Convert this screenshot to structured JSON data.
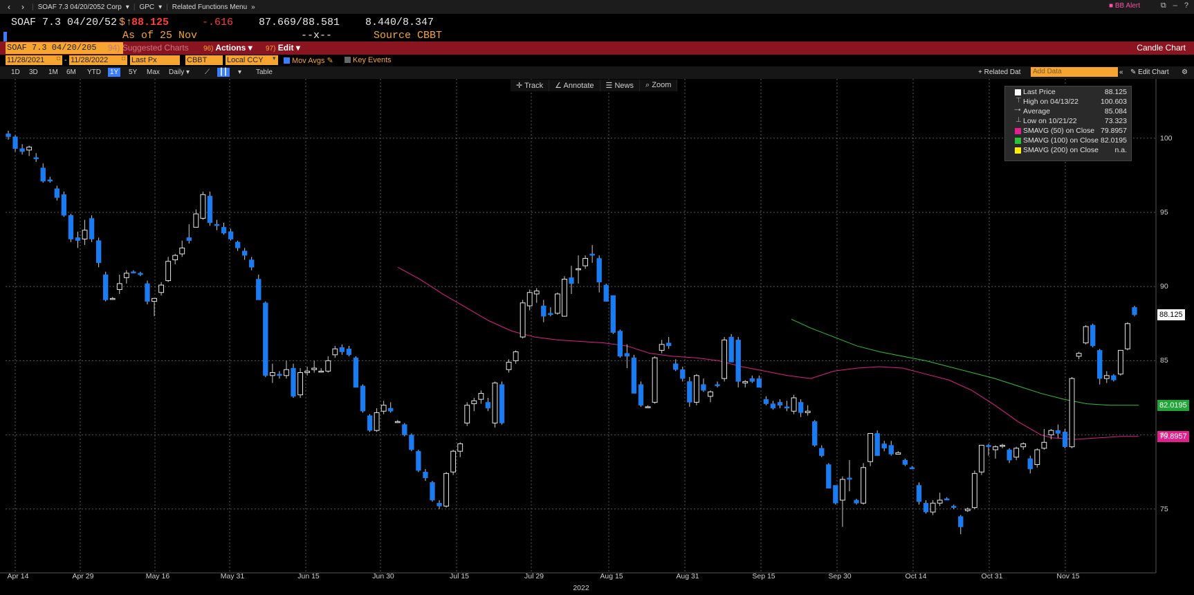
{
  "topbar": {
    "security": "SOAF 7.3 04/20/2052 Corp",
    "gpc": "GPC",
    "related": "Related Functions Menu",
    "alert": "BB Alert",
    "help": "?"
  },
  "quote": {
    "ticker": "SOAF 7.3 04/20/52",
    "currency": "$",
    "last": "88.125",
    "change": "-.616",
    "bid_ask": "87.669/88.581",
    "yields": "8.440/8.347",
    "asof": "As of 25 Nov",
    "time": "--x--",
    "source": "Source CBBT"
  },
  "menubar": {
    "ticker_field": "SOAF 7.3 04/20/205",
    "suggested_num": "94)",
    "suggested": "Suggested Charts",
    "actions_num": "96)",
    "actions": "Actions",
    "edit_num": "97)",
    "edit": "Edit",
    "title": "Candle Chart"
  },
  "controls": {
    "start_date": "11/28/2021",
    "end_date": "11/28/2022",
    "field": "Last Px",
    "source": "CBBT",
    "ccy": "Local CCY",
    "mov_avgs": "Mov Avgs",
    "key_events": "Key Events"
  },
  "periods": {
    "items": [
      "1D",
      "3D",
      "1M",
      "6M",
      "YTD",
      "1Y",
      "5Y",
      "Max"
    ],
    "selected": "1Y",
    "frequency": "Daily",
    "table": "Table",
    "related_data": "+ Related Dat",
    "add_data": "Add Data",
    "edit_chart": "Edit Chart"
  },
  "tools": {
    "track": "Track",
    "annotate": "Annotate",
    "news": "News",
    "zoom": "Zoom"
  },
  "legend": {
    "last_price_label": "Last Price",
    "last_price": "88.125",
    "high_label": "High on 04/13/22",
    "high": "100.603",
    "average_label": "Average",
    "average": "85.084",
    "low_label": "Low on 10/21/22",
    "low": "73.323",
    "sma50_label": "SMAVG (50)  on Close",
    "sma50": "79.8957",
    "sma100_label": "SMAVG (100)  on Close",
    "sma100": "82.0195",
    "sma200_label": "SMAVG (200)  on Close",
    "sma200": "n.a.",
    "colors": {
      "sma50": "#e0208c",
      "sma100": "#2ec23a",
      "sma200": "#ffee00",
      "last": "#ffffff"
    }
  },
  "chart_data": {
    "type": "candlestick",
    "x_axis_year": "2022",
    "x_ticks": [
      "Apr 14",
      "Apr 29",
      "May 16",
      "May 31",
      "Jun 15",
      "Jun 30",
      "Jul 15",
      "Jul 29",
      "Aug 15",
      "Aug 31",
      "Sep 15",
      "Sep 30",
      "Oct 14",
      "Oct 31",
      "Nov 15"
    ],
    "y_ticks": [
      75,
      80,
      85,
      90,
      95,
      100
    ],
    "ylim": [
      70.7,
      104.0
    ],
    "last_price_tag": "88.125",
    "sma100_tag": "82.0195",
    "sma50_tag": "79.8957",
    "candles": [
      [
        100.3,
        100.5,
        99.9,
        100.1
      ],
      [
        100.1,
        100.2,
        99.1,
        99.3
      ],
      [
        99.3,
        99.6,
        98.9,
        99.1
      ],
      [
        99.2,
        99.5,
        98.8,
        99.4
      ],
      [
        98.7,
        99.0,
        98.4,
        98.6
      ],
      [
        98.0,
        98.3,
        97.0,
        97.1
      ],
      [
        97.2,
        97.4,
        97.0,
        97.1
      ],
      [
        96.6,
        96.8,
        95.8,
        96.0
      ],
      [
        96.2,
        96.4,
        94.7,
        94.8
      ],
      [
        94.8,
        94.9,
        93.0,
        93.2
      ],
      [
        93.3,
        93.7,
        92.6,
        93.1
      ],
      [
        93.2,
        94.5,
        92.8,
        93.8
      ],
      [
        94.6,
        94.8,
        93.0,
        93.2
      ],
      [
        93.1,
        93.3,
        91.3,
        91.6
      ],
      [
        90.8,
        91.0,
        89.0,
        89.1
      ],
      [
        89.2,
        89.3,
        89.1,
        89.2
      ],
      [
        89.8,
        90.8,
        89.5,
        90.2
      ],
      [
        90.6,
        91.1,
        90.2,
        90.9
      ],
      [
        91.0,
        91.1,
        90.9,
        90.9
      ],
      [
        90.9,
        91.0,
        90.7,
        90.8
      ],
      [
        90.2,
        90.4,
        88.8,
        89.0
      ],
      [
        89.0,
        89.2,
        88.0,
        89.2
      ],
      [
        89.6,
        90.3,
        89.4,
        90.1
      ],
      [
        90.4,
        92.0,
        90.3,
        91.7
      ],
      [
        91.8,
        92.2,
        91.5,
        92.1
      ],
      [
        92.2,
        93.1,
        92.0,
        92.6
      ],
      [
        93.3,
        94.2,
        92.9,
        93.1
      ],
      [
        94.0,
        95.2,
        94.0,
        94.9
      ],
      [
        94.6,
        96.4,
        94.5,
        96.2
      ],
      [
        96.1,
        96.4,
        94.1,
        94.3
      ],
      [
        94.2,
        94.5,
        93.8,
        94.1
      ],
      [
        94.0,
        94.3,
        93.5,
        93.6
      ],
      [
        93.7,
        93.9,
        93.1,
        93.2
      ],
      [
        93.0,
        93.1,
        92.4,
        92.6
      ],
      [
        92.4,
        92.6,
        91.8,
        92.1
      ],
      [
        91.8,
        92.0,
        91.1,
        91.3
      ],
      [
        90.5,
        90.8,
        89.1,
        89.1
      ],
      [
        88.9,
        89.0,
        83.9,
        84.0
      ],
      [
        84.0,
        84.8,
        83.5,
        84.2
      ],
      [
        84.1,
        84.3,
        83.8,
        84.0
      ],
      [
        84.0,
        85.0,
        83.8,
        84.4
      ],
      [
        84.5,
        84.8,
        82.5,
        82.6
      ],
      [
        82.7,
        84.5,
        82.5,
        84.2
      ],
      [
        84.2,
        84.6,
        84.0,
        84.3
      ],
      [
        84.4,
        85.0,
        84.2,
        84.5
      ],
      [
        84.3,
        84.5,
        84.2,
        84.3
      ],
      [
        84.3,
        85.3,
        84.2,
        85.0
      ],
      [
        85.4,
        86.0,
        85.2,
        85.8
      ],
      [
        85.9,
        86.1,
        85.4,
        85.6
      ],
      [
        85.8,
        86.0,
        85.3,
        85.4
      ],
      [
        85.2,
        85.3,
        83.2,
        83.2
      ],
      [
        83.3,
        83.4,
        81.5,
        81.6
      ],
      [
        81.3,
        81.4,
        80.2,
        80.3
      ],
      [
        80.3,
        81.8,
        80.2,
        81.5
      ],
      [
        81.6,
        82.3,
        81.4,
        82.0
      ],
      [
        81.8,
        82.2,
        81.5,
        81.6
      ],
      [
        80.9,
        81.0,
        80.8,
        80.9
      ],
      [
        80.7,
        80.8,
        79.9,
        80.0
      ],
      [
        80.0,
        80.1,
        78.9,
        79.0
      ],
      [
        78.9,
        79.0,
        77.5,
        77.6
      ],
      [
        77.5,
        77.7,
        76.9,
        77.1
      ],
      [
        76.8,
        76.9,
        75.5,
        75.6
      ],
      [
        75.4,
        75.6,
        75.0,
        75.2
      ],
      [
        75.2,
        77.5,
        75.1,
        77.4
      ],
      [
        77.5,
        79.0,
        77.3,
        78.9
      ],
      [
        78.9,
        79.5,
        78.5,
        79.4
      ],
      [
        80.8,
        82.2,
        80.6,
        82.0
      ],
      [
        82.1,
        82.5,
        81.6,
        82.3
      ],
      [
        82.4,
        83.0,
        82.1,
        82.8
      ],
      [
        82.2,
        82.5,
        81.6,
        81.8
      ],
      [
        80.8,
        83.6,
        80.5,
        83.5
      ],
      [
        83.4,
        83.6,
        80.7,
        80.8
      ],
      [
        84.4,
        85.1,
        84.2,
        84.9
      ],
      [
        85.0,
        85.7,
        84.8,
        85.6
      ],
      [
        86.6,
        89.1,
        86.5,
        88.9
      ],
      [
        88.7,
        89.8,
        88.4,
        89.6
      ],
      [
        89.5,
        89.9,
        88.9,
        89.7
      ],
      [
        88.7,
        89.1,
        87.6,
        88.0
      ],
      [
        88.2,
        88.6,
        88.0,
        88.1
      ],
      [
        88.2,
        89.6,
        88.1,
        89.5
      ],
      [
        88.0,
        90.7,
        88.0,
        90.5
      ],
      [
        90.6,
        91.4,
        89.5,
        90.2
      ],
      [
        91.2,
        92.1,
        90.2,
        91.2
      ],
      [
        91.4,
        92.1,
        91.2,
        91.9
      ],
      [
        92.2,
        92.8,
        91.6,
        92.1
      ],
      [
        91.9,
        92.1,
        89.6,
        90.3
      ],
      [
        90.1,
        90.2,
        89.0,
        89.0
      ],
      [
        89.4,
        89.4,
        86.8,
        86.9
      ],
      [
        87.0,
        87.1,
        85.2,
        85.3
      ],
      [
        85.5,
        86.1,
        84.5,
        85.3
      ],
      [
        85.2,
        85.4,
        82.8,
        82.8
      ],
      [
        83.4,
        83.6,
        81.9,
        82.0
      ],
      [
        81.9,
        82.0,
        81.8,
        81.9
      ],
      [
        82.2,
        85.3,
        82.1,
        85.2
      ],
      [
        85.7,
        86.4,
        85.5,
        86.1
      ],
      [
        86.2,
        86.6,
        85.8,
        86.0
      ],
      [
        84.8,
        85.1,
        84.3,
        84.4
      ],
      [
        84.4,
        84.6,
        83.6,
        83.8
      ],
      [
        83.6,
        83.9,
        81.9,
        82.2
      ],
      [
        82.2,
        84.1,
        82.0,
        84.0
      ],
      [
        83.4,
        83.8,
        82.9,
        83.0
      ],
      [
        82.6,
        83.0,
        82.2,
        82.9
      ],
      [
        83.4,
        83.6,
        83.2,
        83.3
      ],
      [
        83.8,
        86.6,
        83.6,
        86.4
      ],
      [
        86.6,
        86.8,
        84.9,
        84.9
      ],
      [
        86.4,
        86.6,
        83.2,
        83.6
      ],
      [
        83.5,
        83.7,
        83.2,
        83.6
      ],
      [
        83.8,
        84.0,
        83.5,
        83.6
      ],
      [
        83.8,
        84.0,
        83.2,
        83.2
      ],
      [
        82.4,
        82.6,
        82.0,
        82.1
      ],
      [
        82.1,
        82.3,
        81.7,
        81.8
      ],
      [
        82.2,
        82.4,
        81.8,
        82.0
      ],
      [
        81.9,
        82.3,
        81.6,
        81.8
      ],
      [
        81.6,
        82.7,
        81.4,
        82.5
      ],
      [
        82.2,
        82.4,
        81.2,
        81.5
      ],
      [
        81.5,
        82.0,
        81.3,
        81.6
      ],
      [
        80.9,
        81.0,
        79.2,
        79.3
      ],
      [
        79.1,
        79.3,
        78.5,
        78.6
      ],
      [
        78.0,
        78.1,
        76.4,
        76.4
      ],
      [
        76.6,
        76.6,
        75.3,
        75.4
      ],
      [
        75.6,
        77.2,
        73.8,
        77.0
      ],
      [
        77.1,
        78.3,
        76.2,
        77.0
      ],
      [
        75.6,
        75.7,
        75.3,
        75.4
      ],
      [
        75.4,
        78.1,
        75.3,
        77.8
      ],
      [
        78.2,
        80.0,
        77.9,
        80.1
      ],
      [
        80.1,
        80.3,
        78.6,
        78.6
      ],
      [
        79.4,
        79.6,
        78.9,
        79.1
      ],
      [
        79.3,
        79.6,
        78.6,
        78.7
      ],
      [
        78.7,
        78.9,
        78.7,
        78.8
      ],
      [
        78.3,
        78.4,
        77.9,
        78.0
      ],
      [
        77.8,
        77.9,
        77.7,
        77.7
      ],
      [
        76.6,
        76.8,
        75.3,
        75.5
      ],
      [
        75.4,
        75.6,
        74.7,
        74.8
      ],
      [
        74.8,
        75.6,
        74.6,
        75.4
      ],
      [
        75.4,
        76.1,
        75.2,
        75.6
      ],
      [
        75.7,
        75.8,
        75.6,
        75.6
      ],
      [
        75.2,
        75.3,
        75.0,
        75.1
      ],
      [
        74.5,
        74.6,
        73.3,
        73.8
      ],
      [
        74.9,
        75.1,
        74.8,
        75.0
      ],
      [
        75.1,
        77.6,
        75.0,
        77.4
      ],
      [
        77.5,
        79.3,
        77.3,
        79.3
      ],
      [
        79.3,
        79.4,
        78.6,
        79.2
      ],
      [
        79.0,
        79.3,
        78.4,
        79.2
      ],
      [
        79.3,
        79.4,
        79.1,
        79.3
      ],
      [
        79.0,
        79.1,
        78.1,
        78.3
      ],
      [
        78.5,
        79.2,
        78.3,
        79.1
      ],
      [
        79.2,
        79.5,
        79.0,
        79.4
      ],
      [
        78.4,
        78.6,
        77.4,
        77.7
      ],
      [
        78.0,
        79.1,
        77.8,
        79.0
      ],
      [
        79.1,
        80.4,
        79.0,
        79.5
      ],
      [
        80.0,
        80.4,
        79.7,
        80.3
      ],
      [
        80.3,
        80.7,
        79.8,
        80.1
      ],
      [
        80.2,
        80.4,
        79.1,
        79.2
      ],
      [
        79.2,
        83.9,
        79.1,
        83.8
      ],
      [
        85.3,
        85.6,
        85.1,
        85.5
      ],
      [
        86.2,
        87.4,
        86.1,
        87.3
      ],
      [
        87.4,
        87.5,
        85.9,
        86.0
      ],
      [
        85.7,
        85.8,
        83.4,
        83.8
      ],
      [
        83.8,
        84.3,
        83.5,
        84.0
      ],
      [
        84.0,
        84.1,
        83.6,
        83.7
      ],
      [
        84.1,
        85.7,
        84.0,
        85.7
      ],
      [
        85.8,
        87.6,
        85.7,
        87.5
      ],
      [
        88.6,
        88.7,
        88.0,
        88.1
      ]
    ],
    "sma50": [
      [
        0.341,
        91.3
      ],
      [
        0.36,
        90.5
      ],
      [
        0.38,
        89.5
      ],
      [
        0.4,
        88.6
      ],
      [
        0.42,
        87.7
      ],
      [
        0.44,
        87.0
      ],
      [
        0.46,
        86.6
      ],
      [
        0.48,
        86.4
      ],
      [
        0.5,
        86.3
      ],
      [
        0.52,
        86.2
      ],
      [
        0.54,
        86.0
      ],
      [
        0.56,
        85.5
      ],
      [
        0.58,
        85.3
      ],
      [
        0.6,
        85.2
      ],
      [
        0.62,
        85.0
      ],
      [
        0.64,
        84.6
      ],
      [
        0.66,
        84.3
      ],
      [
        0.68,
        84.0
      ],
      [
        0.7,
        83.8
      ],
      [
        0.72,
        84.3
      ],
      [
        0.74,
        84.5
      ],
      [
        0.76,
        84.6
      ],
      [
        0.78,
        84.5
      ],
      [
        0.8,
        84.1
      ],
      [
        0.82,
        83.7
      ],
      [
        0.84,
        83.0
      ],
      [
        0.86,
        82.0
      ],
      [
        0.88,
        80.9
      ],
      [
        0.9,
        80.0
      ],
      [
        0.91,
        79.8
      ],
      [
        0.93,
        79.7
      ],
      [
        0.95,
        79.8
      ],
      [
        0.97,
        79.9
      ],
      [
        0.985,
        79.9
      ]
    ],
    "sma100": [
      [
        0.683,
        87.8
      ],
      [
        0.7,
        87.2
      ],
      [
        0.72,
        86.6
      ],
      [
        0.74,
        86.0
      ],
      [
        0.76,
        85.6
      ],
      [
        0.78,
        85.3
      ],
      [
        0.8,
        85.0
      ],
      [
        0.82,
        84.6
      ],
      [
        0.84,
        84.2
      ],
      [
        0.86,
        83.8
      ],
      [
        0.88,
        83.3
      ],
      [
        0.9,
        82.8
      ],
      [
        0.92,
        82.4
      ],
      [
        0.94,
        82.1
      ],
      [
        0.96,
        82.0
      ],
      [
        0.985,
        82.0
      ]
    ]
  }
}
